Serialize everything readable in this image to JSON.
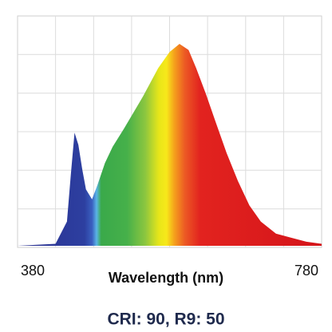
{
  "chart_data": {
    "type": "area",
    "x_label": "Wavelength (nm)",
    "annotation": "CRI: 90, R9: 50",
    "x": [
      380,
      430,
      445,
      450,
      455,
      460,
      465,
      470,
      478,
      485,
      495,
      505,
      520,
      545,
      565,
      580,
      593,
      605,
      615,
      628,
      640,
      655,
      670,
      685,
      700,
      720,
      740,
      760,
      780
    ],
    "values": [
      0,
      1,
      12,
      35,
      56,
      50,
      38,
      28,
      23,
      30,
      41,
      49,
      58,
      74,
      88,
      96,
      100,
      97,
      88,
      75,
      62,
      46,
      32,
      20,
      12,
      6,
      4,
      2,
      1
    ],
    "xlim": [
      380,
      780
    ],
    "xticks": [
      380,
      780
    ],
    "ylim": [
      0,
      100
    ]
  }
}
